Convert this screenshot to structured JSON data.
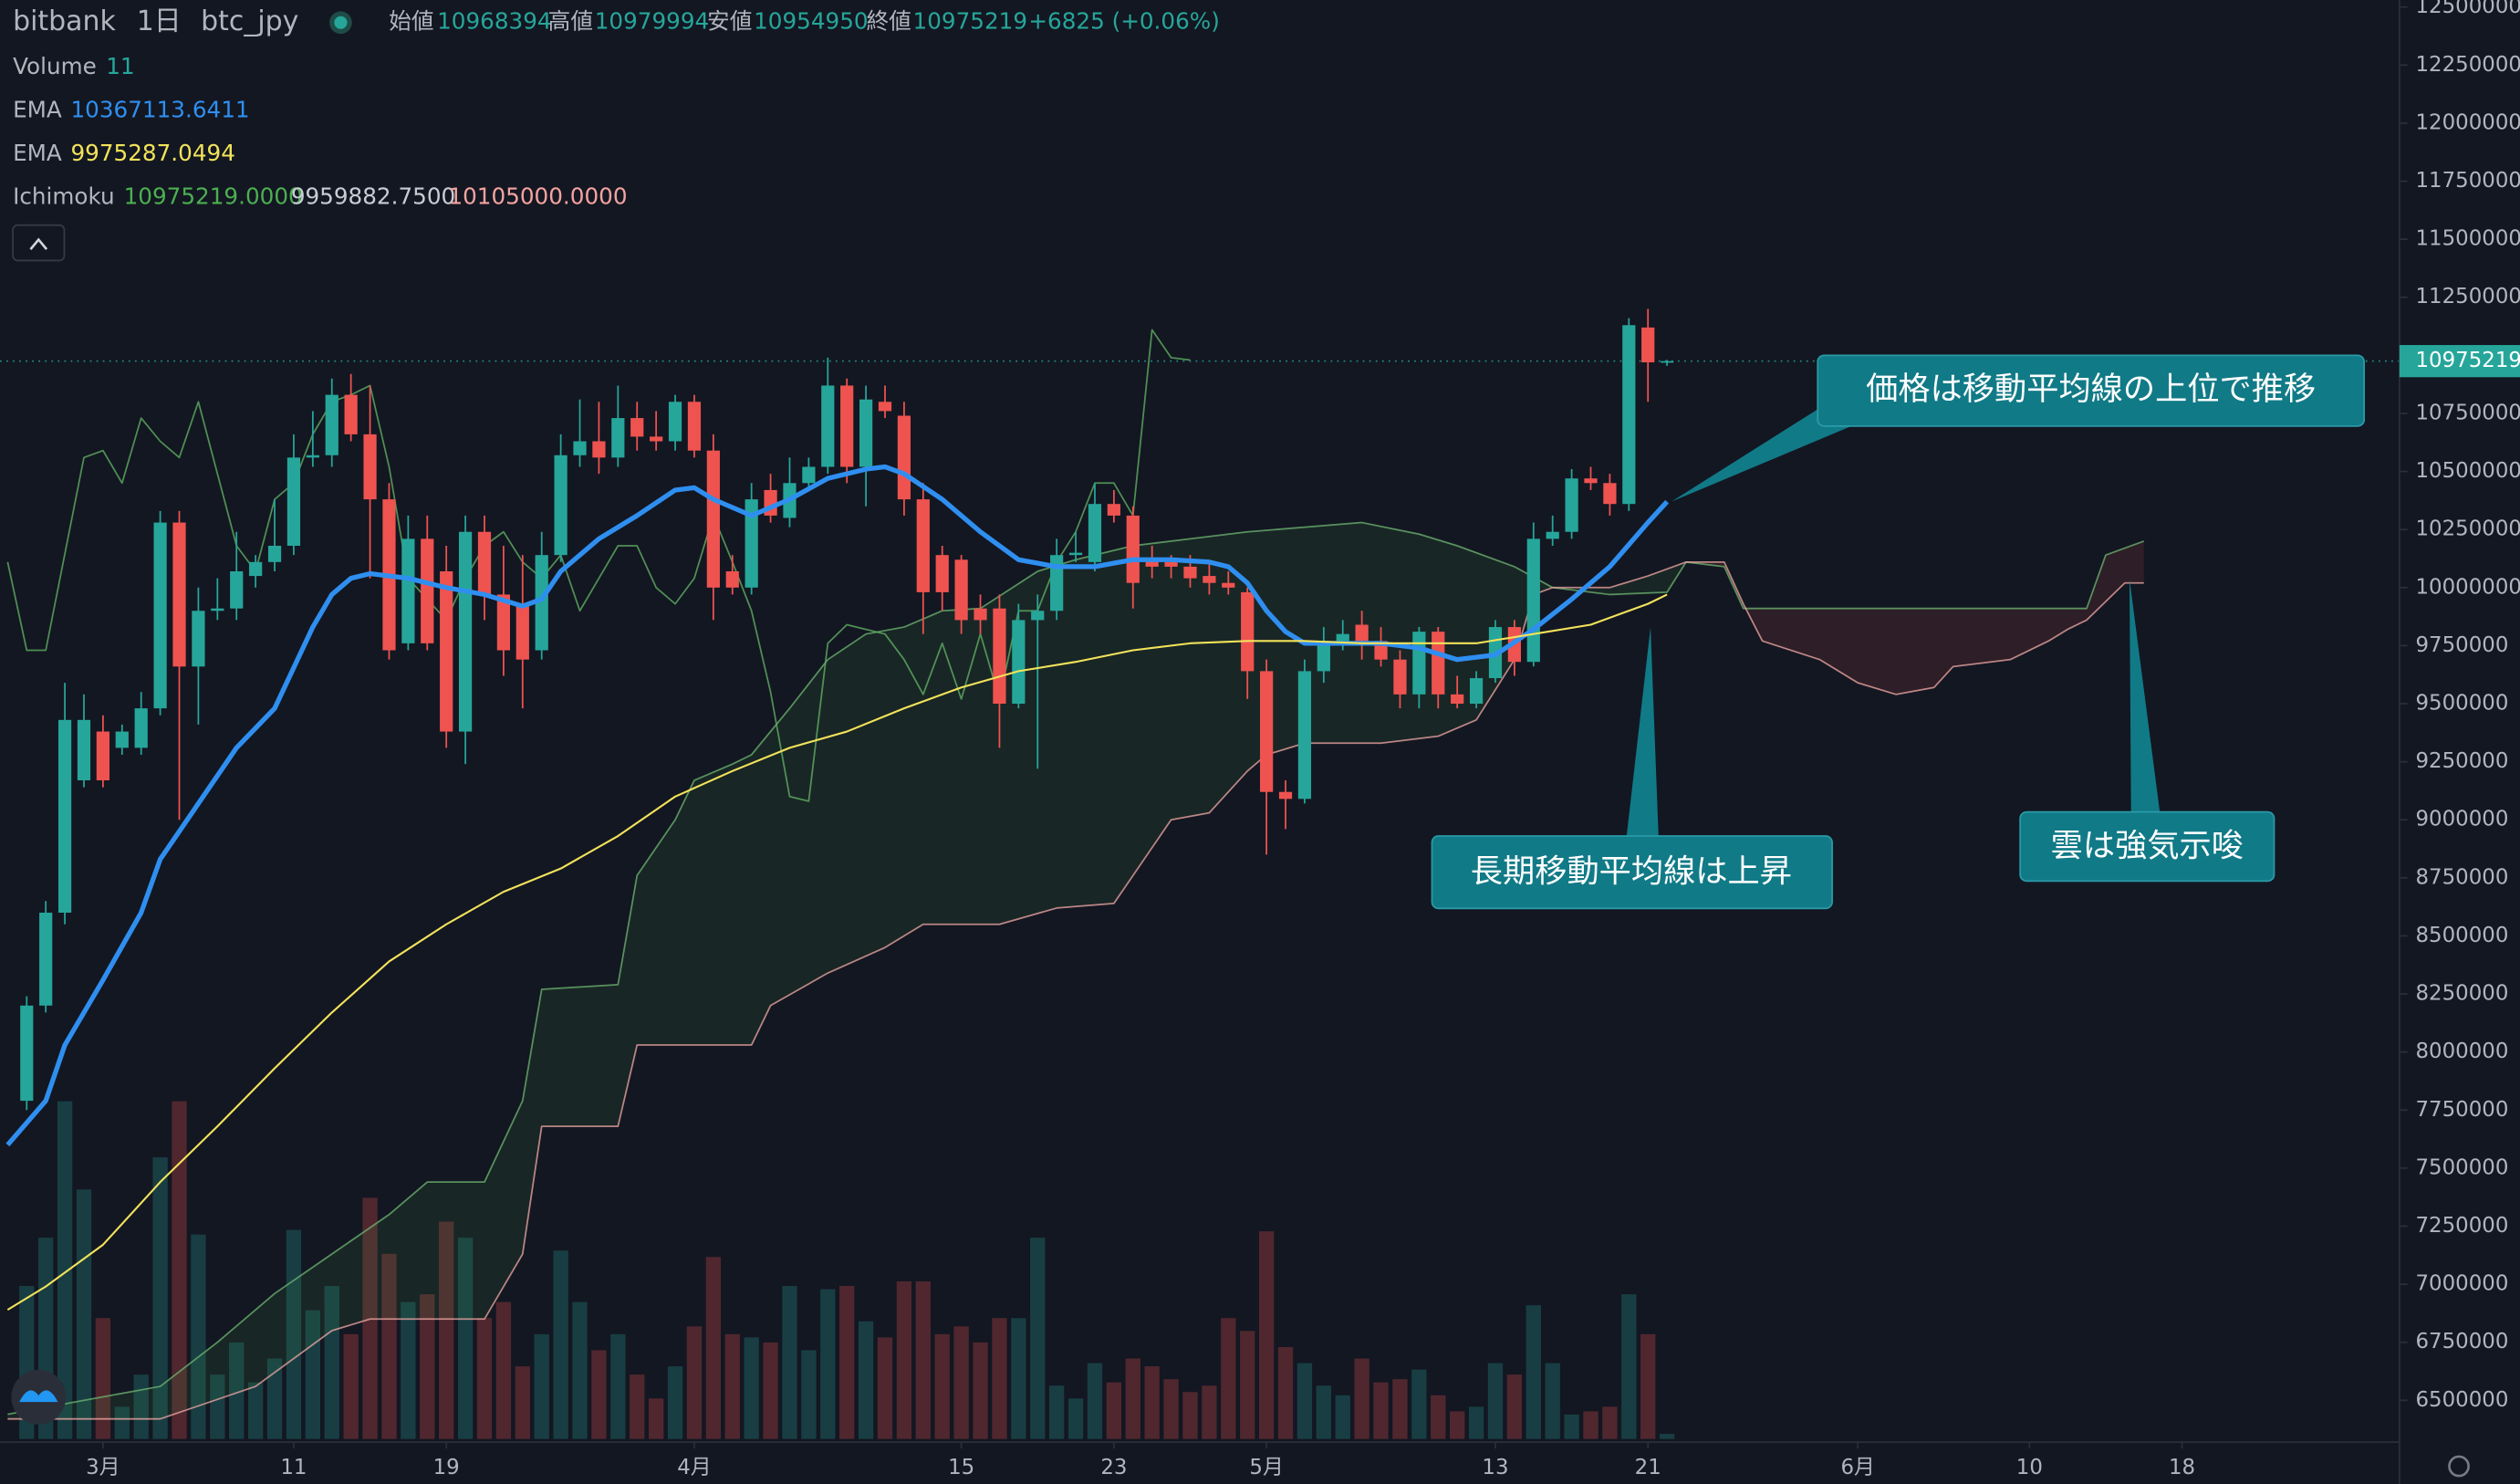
{
  "chart_data": {
    "type": "candlestick",
    "header": {
      "symbol": "bitbank",
      "interval": "1日",
      "pair": "btc_jpy",
      "open_label": "始値",
      "open": 10968394,
      "high_label": "高値",
      "high": 10979994,
      "low_label": "安値",
      "low": 10954950,
      "close_label": "終値",
      "close": 10975219,
      "change_label": "+6825 (+0.06%)"
    },
    "volume_legend": {
      "name": "Volume",
      "value": 11
    },
    "ichimoku_legend": {
      "name": "Ichimoku",
      "values": [
        {
          "value": 10975219,
          "label": "10975219.0000"
        },
        {
          "value": 9959882.75,
          "label": "9959882.7500"
        },
        {
          "value": 10105000,
          "label": "10105000.0000"
        }
      ],
      "colors": [
        "#4caf50",
        "#c9ccd4",
        "#f4a3a0"
      ]
    },
    "up_color": "#26a69a",
    "down_color": "#ef5350",
    "x": [
      -4,
      -3,
      -2,
      -1,
      0,
      1,
      2,
      3,
      4,
      5,
      6,
      7,
      8,
      9,
      10,
      11,
      12,
      13,
      14,
      15,
      16,
      17,
      18,
      19,
      20,
      21,
      22,
      23,
      24,
      25,
      26,
      27,
      28,
      29,
      30,
      31,
      32,
      33,
      34,
      35,
      36,
      37,
      38,
      39,
      40,
      41,
      42,
      43,
      44,
      45,
      46,
      47,
      48,
      49,
      50,
      51,
      52,
      53,
      54,
      55,
      56,
      57,
      58,
      59,
      60,
      61,
      62,
      63,
      64,
      65,
      66,
      67,
      68,
      69,
      70,
      71,
      72,
      73,
      74,
      75,
      76,
      77,
      78,
      79,
      80,
      81,
      82
    ],
    "open": [
      7790000,
      8200000,
      8600000,
      9170000,
      9380000,
      9310000,
      9310000,
      9480000,
      10280000,
      9660000,
      9900000,
      9910000,
      10050000,
      10110000,
      10180000,
      10560000,
      10570000,
      10830000,
      10660000,
      10380000,
      9760000,
      10210000,
      10070000,
      9380000,
      10240000,
      9970000,
      9930000,
      9730000,
      10140000,
      10570000,
      10630000,
      10560000,
      10730000,
      10650000,
      10630000,
      10800000,
      10590000,
      10070000,
      10000000,
      10420000,
      10300000,
      10450000,
      10520000,
      10870000,
      10520000,
      10800000,
      10740000,
      10380000,
      10140000,
      10120000,
      9910000,
      9910000,
      9500000,
      9860000,
      9900000,
      10140000,
      10110000,
      10360000,
      10310000,
      10120000,
      10110000,
      10090000,
      10050000,
      10020000,
      9980000,
      9640000,
      9120000,
      9090000,
      9640000,
      9770000,
      9840000,
      9770000,
      9690000,
      9540000,
      9810000,
      9540000,
      9500000,
      9610000,
      9830000,
      9680000,
      10210000,
      10240000,
      10470000,
      10450000,
      10360000,
      11120000,
      10968394
    ],
    "high": [
      8240000,
      8650000,
      9590000,
      9540000,
      9450000,
      9410000,
      9550000,
      10330000,
      10330000,
      10000000,
      10040000,
      10240000,
      10140000,
      10380000,
      10660000,
      10760000,
      10900000,
      10920000,
      10870000,
      10450000,
      10310000,
      10310000,
      10180000,
      10310000,
      10310000,
      10180000,
      10140000,
      10240000,
      10660000,
      10810000,
      10800000,
      10870000,
      10800000,
      10760000,
      10830000,
      10830000,
      10660000,
      10140000,
      10450000,
      10490000,
      10560000,
      10560000,
      10990000,
      10900000,
      10870000,
      10870000,
      10800000,
      10450000,
      10180000,
      10140000,
      9970000,
      9970000,
      9930000,
      9970000,
      10210000,
      10240000,
      10450000,
      10420000,
      10350000,
      10180000,
      10140000,
      10140000,
      10110000,
      10070000,
      10000000,
      9690000,
      9170000,
      9690000,
      9830000,
      9860000,
      9900000,
      9830000,
      9730000,
      9830000,
      9830000,
      9620000,
      9640000,
      9860000,
      9860000,
      10280000,
      10310000,
      10510000,
      10520000,
      10490000,
      11160000,
      11200000,
      10979994
    ],
    "low": [
      7750000,
      8170000,
      8550000,
      9140000,
      9140000,
      9280000,
      9280000,
      9450000,
      9000000,
      9410000,
      9860000,
      9860000,
      10000000,
      10070000,
      10140000,
      10520000,
      10520000,
      10630000,
      10040000,
      9690000,
      9730000,
      9730000,
      9310000,
      9240000,
      9860000,
      9620000,
      9480000,
      9690000,
      10110000,
      10520000,
      10490000,
      10520000,
      10590000,
      10590000,
      10590000,
      10560000,
      9860000,
      9970000,
      9970000,
      10280000,
      10260000,
      10420000,
      10490000,
      10450000,
      10350000,
      10730000,
      10310000,
      9800000,
      9900000,
      9800000,
      9800000,
      9310000,
      9480000,
      9220000,
      9860000,
      10110000,
      10070000,
      10280000,
      9910000,
      10040000,
      10040000,
      10000000,
      9970000,
      9970000,
      9520000,
      8850000,
      8960000,
      9070000,
      9590000,
      9730000,
      9690000,
      9660000,
      9480000,
      9480000,
      9480000,
      9480000,
      9480000,
      9590000,
      9620000,
      9660000,
      10180000,
      10210000,
      10420000,
      10310000,
      10330000,
      10800000,
      10954950
    ],
    "close": [
      8200000,
      8600000,
      9430000,
      9430000,
      9170000,
      9380000,
      9480000,
      10280000,
      9660000,
      9900000,
      9910000,
      10070000,
      10110000,
      10180000,
      10560000,
      10570000,
      10830000,
      10660000,
      10380000,
      9730000,
      10210000,
      9760000,
      9380000,
      10240000,
      9970000,
      9730000,
      9690000,
      10140000,
      10570000,
      10630000,
      10560000,
      10730000,
      10650000,
      10630000,
      10800000,
      10590000,
      10000000,
      10000000,
      10380000,
      10310000,
      10450000,
      10520000,
      10870000,
      10520000,
      10810000,
      10760000,
      10380000,
      9980000,
      9980000,
      9860000,
      9860000,
      9500000,
      9860000,
      9900000,
      10140000,
      10150000,
      10360000,
      10310000,
      10020000,
      10090000,
      10090000,
      10040000,
      10020000,
      10000000,
      9640000,
      9120000,
      9090000,
      9640000,
      9770000,
      9800000,
      9770000,
      9690000,
      9540000,
      9810000,
      9540000,
      9500000,
      9610000,
      9830000,
      9680000,
      10210000,
      10240000,
      10470000,
      10450000,
      10360000,
      11130000,
      10970000,
      10975219
    ],
    "volume": [
      333,
      438,
      735,
      543,
      263,
      70,
      140,
      613,
      735,
      445,
      140,
      210,
      123,
      175,
      455,
      280,
      333,
      228,
      525,
      403,
      298,
      315,
      473,
      438,
      263,
      298,
      158,
      228,
      410,
      298,
      193,
      228,
      140,
      88,
      158,
      245,
      396,
      228,
      221,
      210,
      333,
      193,
      326,
      333,
      256,
      221,
      343,
      343,
      228,
      245,
      210,
      263,
      263,
      438,
      116,
      88,
      165,
      123,
      175,
      158,
      130,
      102,
      116,
      263,
      235,
      452,
      200,
      165,
      116,
      95,
      175,
      123,
      130,
      151,
      95,
      60,
      70,
      165,
      140,
      291,
      165,
      53,
      60,
      70,
      315,
      228,
      11
    ],
    "series": [
      {
        "name": "EMA",
        "value": 10367113.6411,
        "color": "#2f8ff0",
        "x": [
          -5,
          -3,
          -2,
          0,
          2,
          3,
          5,
          7,
          9,
          11,
          12,
          13,
          14,
          16,
          18,
          20,
          22,
          23,
          24,
          26,
          28,
          30,
          31,
          32,
          34,
          36,
          38,
          40,
          41,
          42,
          44,
          46,
          48,
          50,
          52,
          54,
          56,
          58,
          59,
          60,
          61,
          62,
          63,
          65,
          67,
          69,
          71,
          73,
          75,
          77,
          79,
          81,
          82
        ],
        "values": [
          7600000,
          7790000,
          8030000,
          8310000,
          8600000,
          8830000,
          9070000,
          9310000,
          9480000,
          9830000,
          9970000,
          10040000,
          10060000,
          10040000,
          10000000,
          9970000,
          9920000,
          9950000,
          10070000,
          10210000,
          10310000,
          10420000,
          10430000,
          10380000,
          10310000,
          10380000,
          10470000,
          10510000,
          10520000,
          10490000,
          10380000,
          10240000,
          10120000,
          10090000,
          10090000,
          10120000,
          10120000,
          10110000,
          10090000,
          10020000,
          9900000,
          9810000,
          9760000,
          9760000,
          9760000,
          9740000,
          9690000,
          9710000,
          9820000,
          9950000,
          10090000,
          10280000,
          10370000
        ]
      },
      {
        "name": "EMA",
        "value": 9975287.0494,
        "color": "#f2e35a",
        "x": [
          -5,
          -3,
          0,
          3,
          6,
          9,
          12,
          15,
          18,
          21,
          24,
          27,
          30,
          33,
          36,
          39,
          42,
          45,
          48,
          51,
          54,
          57,
          60,
          63,
          66,
          69,
          72,
          75,
          78,
          81,
          82
        ],
        "values": [
          6890000,
          6990000,
          7170000,
          7440000,
          7680000,
          7930000,
          8170000,
          8390000,
          8550000,
          8690000,
          8790000,
          8930000,
          9100000,
          9210000,
          9310000,
          9380000,
          9480000,
          9570000,
          9640000,
          9680000,
          9730000,
          9760000,
          9770000,
          9770000,
          9760000,
          9760000,
          9760000,
          9800000,
          9840000,
          9930000,
          9970000
        ]
      }
    ],
    "ichimoku": {
      "span_a": {
        "color": "#6fb872",
        "x": [
          -5,
          3,
          6,
          9,
          12,
          15,
          17,
          20,
          22,
          23,
          27,
          28,
          30,
          31,
          33,
          34,
          36,
          38,
          40,
          42,
          44,
          46,
          49,
          51,
          54,
          57,
          60,
          63,
          66,
          69,
          71,
          74,
          76,
          79,
          82,
          83,
          85,
          86,
          104,
          105,
          107
        ],
        "values": [
          6440000,
          6560000,
          6750000,
          6960000,
          7130000,
          7300000,
          7440000,
          7440000,
          7790000,
          8270000,
          8290000,
          8760000,
          9000000,
          9170000,
          9240000,
          9280000,
          9480000,
          9690000,
          9800000,
          9830000,
          9900000,
          9910000,
          10070000,
          10120000,
          10180000,
          10210000,
          10240000,
          10260000,
          10280000,
          10230000,
          10180000,
          10090000,
          10000000,
          9970000,
          9980000,
          10110000,
          10090000,
          9910000,
          9910000,
          10140000,
          10200000
        ]
      },
      "span_b": {
        "color": "#f1a9a6",
        "x": [
          -5,
          3,
          8,
          12,
          14,
          20,
          21,
          22,
          23,
          27,
          28,
          34,
          35,
          38,
          41,
          43,
          47,
          50,
          53,
          56,
          58,
          60,
          61,
          63,
          67,
          70,
          72,
          74,
          75,
          76,
          79,
          81,
          83,
          85,
          86,
          87,
          90,
          92,
          94,
          96,
          97,
          100,
          102,
          103,
          104,
          106,
          107
        ],
        "values": [
          6420000,
          6420000,
          6560000,
          6800000,
          6850000,
          6850000,
          6990000,
          7130000,
          7680000,
          7680000,
          8030000,
          8030000,
          8200000,
          8340000,
          8450000,
          8550000,
          8550000,
          8620000,
          8640000,
          9000000,
          9030000,
          9210000,
          9280000,
          9330000,
          9330000,
          9360000,
          9430000,
          9690000,
          9970000,
          10000000,
          10000000,
          10050000,
          10110000,
          10110000,
          9930000,
          9770000,
          9690000,
          9590000,
          9540000,
          9570000,
          9660000,
          9690000,
          9770000,
          9820000,
          9860000,
          10020000,
          10020000
        ]
      },
      "lagging": {
        "color": "#5fae62",
        "x": [
          -5,
          -4,
          -3,
          -1,
          0,
          1,
          2,
          3,
          4,
          5,
          7,
          8,
          9,
          10,
          11,
          12,
          13,
          14,
          15,
          16,
          18,
          19,
          20,
          21,
          22,
          23,
          24,
          25,
          27,
          28,
          29,
          30,
          31,
          32,
          33,
          34,
          35,
          36,
          37,
          38,
          39,
          40,
          41,
          42,
          43,
          44,
          45,
          46,
          47,
          48,
          49,
          50,
          51,
          52,
          53,
          54,
          55,
          56,
          57
        ],
        "values": [
          10110000,
          9730000,
          9730000,
          10560000,
          10590000,
          10450000,
          10730000,
          10630000,
          10560000,
          10800000,
          10180000,
          10070000,
          10380000,
          10450000,
          10660000,
          10800000,
          10830000,
          10870000,
          10520000,
          10040000,
          9860000,
          10040000,
          10180000,
          10240000,
          10110000,
          10040000,
          10140000,
          9900000,
          10180000,
          10180000,
          10000000,
          9930000,
          10040000,
          10310000,
          10110000,
          9900000,
          9550000,
          9100000,
          9080000,
          9760000,
          9840000,
          9820000,
          9800000,
          9690000,
          9540000,
          9760000,
          9520000,
          9800000,
          9520000,
          9900000,
          9900000,
          10110000,
          10240000,
          10450000,
          10450000,
          10310000,
          11110000,
          10990000,
          10980000
        ]
      },
      "cloud_up_color": "rgba(76,175,80,0.10)",
      "cloud_down_color": "rgba(239,83,80,0.12)"
    },
    "annotations": [
      "価格は移動平均線の上位で推移",
      "長期移動平均線は上昇",
      "雲は強気示唆"
    ],
    "xlim": [
      -5.4,
      120.4
    ],
    "xticks": [
      {
        "value": 0,
        "label": "3月"
      },
      {
        "value": 10,
        "label": "11"
      },
      {
        "value": 18,
        "label": "19"
      },
      {
        "value": 31,
        "label": "4月"
      },
      {
        "value": 45,
        "label": "15"
      },
      {
        "value": 53,
        "label": "23"
      },
      {
        "value": 61,
        "label": "5月"
      },
      {
        "value": 73,
        "label": "13"
      },
      {
        "value": 81,
        "label": "21"
      },
      {
        "value": 92,
        "label": "6月"
      },
      {
        "value": 101,
        "label": "10"
      },
      {
        "value": 109,
        "label": "18"
      }
    ],
    "ylim": [
      6320000,
      12530000
    ],
    "yticks": [
      6500000,
      6750000,
      7000000,
      7250000,
      7500000,
      7750000,
      8000000,
      8250000,
      8500000,
      8750000,
      9000000,
      9250000,
      9500000,
      9750000,
      10000000,
      10250000,
      10500000,
      10750000,
      11000000,
      11250000,
      11500000,
      11750000,
      12000000,
      12250000,
      12500000
    ],
    "grid": false
  }
}
